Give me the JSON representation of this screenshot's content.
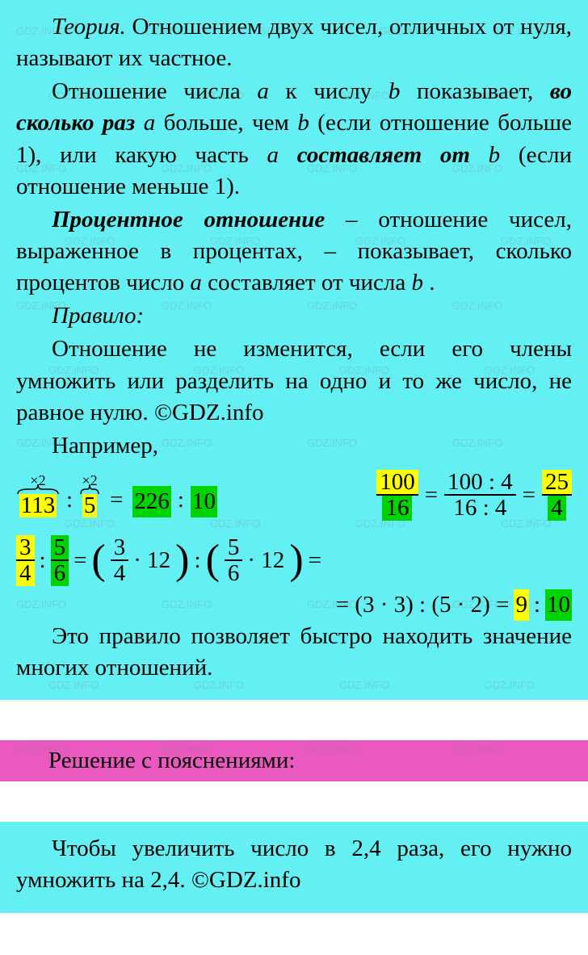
{
  "theory": {
    "p1_pre": "Теория.",
    "p1_rest": " Отношением двух чисел, отличных от нуля, называют их частное.",
    "p2_a": "Отношение числа ",
    "p2_var_a": "a",
    "p2_b": " к числу ",
    "p2_var_b": "b",
    "p2_c": " показывает, ",
    "p2_bold1": "во сколько раз",
    "p2_d": " ",
    "p2_var_a2": "a",
    "p2_e": " больше, чем ",
    "p2_var_b2": "b",
    "p2_f": " (если отношение больше 1), или какую часть ",
    "p2_var_a3": "a",
    "p2_g": " ",
    "p2_bold2": "составляет от",
    "p2_h": " ",
    "p2_var_b3": "b",
    "p2_i": " (если отношение меньше 1).",
    "p3_bold": "Процентное отношение",
    "p3_a": " – отношение чисел, выраженное в процентах, – показывает, сколько процентов число ",
    "p3_var_a": "a",
    "p3_b": " составляет от числа ",
    "p3_var_b": "b",
    "p3_c": " .",
    "rule_label": "Правило:",
    "rule_text": "Отношение не изменится, если его члены умножить или разделить на одно и то же число, не равное нулю. ©GDZ.info",
    "example_label": "Например,",
    "closing": "Это правило позволяет быстро находить значение многих отношений."
  },
  "eq1": {
    "brace_a_label": "×2",
    "a": "113",
    "op1": ":",
    "brace_b_label": "×2",
    "b": "5",
    "eq": "=",
    "c": "226",
    "op2": ":",
    "d": "10"
  },
  "eq2": {
    "f1_num": "100",
    "f1_den": "16",
    "eq1": "=",
    "f2_num": "100 : 4",
    "f2_den": "16 : 4",
    "eq2": "=",
    "f3_num": "25",
    "f3_den": "4"
  },
  "eq3": {
    "f1_num": "3",
    "f1_den": "4",
    "op1": ":",
    "f2_num": "5",
    "f2_den": "6",
    "eq1": "=",
    "p1_num": "3",
    "p1_den": "4",
    "p1_mul": "· 12",
    "op2": ":",
    "p2_num": "5",
    "p2_den": "6",
    "p2_mul": "· 12",
    "eq2": "=",
    "line2_a": "= (3 · 3) : (5 · 2) =",
    "r1": "9",
    "op3": ":",
    "r2": "10"
  },
  "solution": {
    "title": "Решение с пояснениями:",
    "text": "Чтобы увеличить число в 2,4 раза, его нужно умножить на 2,4. ©GDZ.info"
  },
  "colors": {
    "bg_cyan": "#64f0f3",
    "bar_pink": "#ea59c0",
    "hl_yellow": "#ffff00",
    "hl_green": "#00d400",
    "text": "#000000"
  },
  "watermark_text": "GDZ.INFO"
}
